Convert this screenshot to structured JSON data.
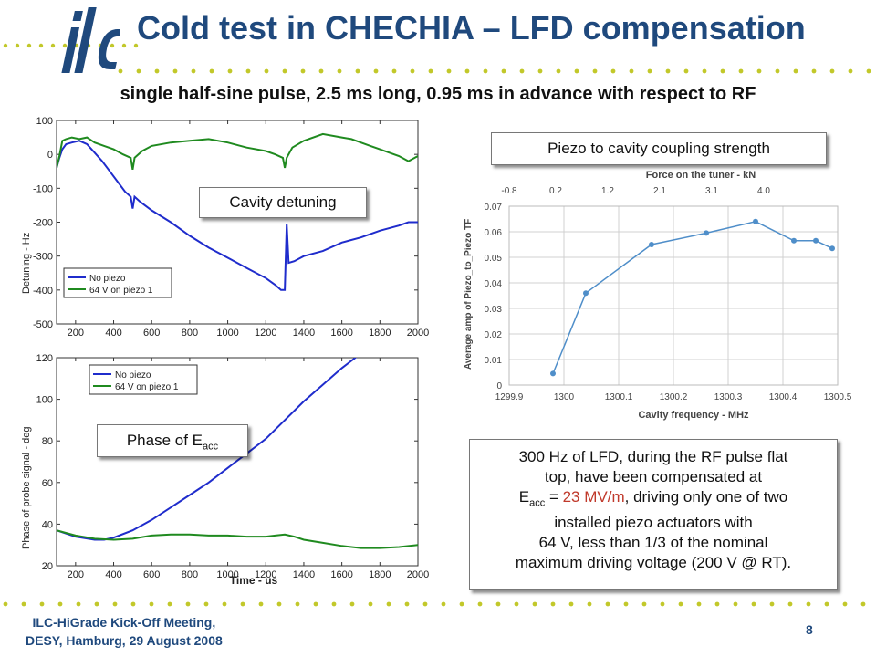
{
  "header": {
    "logo_text": "ilc",
    "title": "Cold test in CHECHIA – LFD compensation",
    "subtitle": "single half-sine pulse, 2.5 ms long, 0.95 ms in advance with respect to RF"
  },
  "labels": {
    "detuning_box": "Cavity detuning",
    "phase_box_main": "Phase of E",
    "phase_box_sub": "acc",
    "coupling_box": "Piezo to cavity coupling strength"
  },
  "note": {
    "line1": "300 Hz of LFD, during the RF pulse flat",
    "line2": "top, have been compensated at",
    "line3_e": "E",
    "line3_sub": "acc",
    "line3_eq": " = ",
    "line3_val": "23 MV/m",
    "line3_rest": ", driving only one of two",
    "line4": "installed piezo actuators with",
    "line5": "64 V, less than 1/3 of the nominal",
    "line6": "maximum driving voltage (200 V @ RT)."
  },
  "footer": {
    "line1": "ILC-HiGrade Kick-Off Meeting,",
    "line2": "DESY, Hamburg, 29 August 2008",
    "page_number": "8"
  },
  "colors": {
    "title_blue": "#1f497d",
    "dots_olive": "#c2c82a",
    "no_piezo": "#1f2ccc",
    "piezo_64v": "#1f8a1f",
    "coupling_line": "#4f8ec9",
    "highlight_red": "#c0392b"
  },
  "chart_data": [
    {
      "id": "detuning",
      "type": "line",
      "xlim": [
        100,
        2000
      ],
      "ylim": [
        -500,
        100
      ],
      "xticks": [
        200,
        400,
        600,
        800,
        1000,
        1200,
        1400,
        1600,
        1800,
        2000
      ],
      "yticks": [
        -500,
        -400,
        -300,
        -200,
        -100,
        0,
        100
      ],
      "xlabel": "",
      "ylabel": "Detuning - Hz",
      "legend": "bottom-left",
      "grid": false,
      "series": [
        {
          "name": "No piezo",
          "x": [
            100,
            115,
            130,
            150,
            180,
            220,
            260,
            300,
            340,
            380,
            420,
            460,
            490,
            500,
            510,
            540,
            600,
            700,
            800,
            900,
            1000,
            1100,
            1200,
            1250,
            1280,
            1300,
            1310,
            1320,
            1350,
            1400,
            1500,
            1600,
            1700,
            1800,
            1900,
            1950,
            2000
          ],
          "y": [
            -40,
            -10,
            15,
            30,
            35,
            40,
            30,
            5,
            -20,
            -50,
            -80,
            -110,
            -125,
            -160,
            -125,
            -140,
            -165,
            -200,
            -240,
            -275,
            -305,
            -335,
            -365,
            -385,
            -400,
            -400,
            -205,
            -320,
            -315,
            -300,
            -285,
            -260,
            -245,
            -225,
            -210,
            -200,
            -200
          ]
        },
        {
          "name": "64 V on piezo 1",
          "x": [
            100,
            115,
            130,
            150,
            180,
            220,
            260,
            300,
            350,
            400,
            450,
            490,
            500,
            510,
            550,
            600,
            700,
            800,
            900,
            1000,
            1100,
            1200,
            1250,
            1290,
            1300,
            1310,
            1340,
            1400,
            1500,
            1600,
            1650,
            1700,
            1750,
            1800,
            1850,
            1900,
            1950,
            2000
          ],
          "y": [
            -40,
            -5,
            40,
            45,
            50,
            45,
            50,
            35,
            25,
            15,
            0,
            -10,
            -45,
            -10,
            10,
            25,
            35,
            40,
            45,
            35,
            20,
            10,
            0,
            -10,
            -40,
            -10,
            20,
            40,
            60,
            50,
            45,
            35,
            25,
            15,
            5,
            -5,
            -20,
            -5
          ]
        }
      ]
    },
    {
      "id": "phase",
      "type": "line",
      "xlim": [
        100,
        2000
      ],
      "ylim": [
        20,
        120
      ],
      "xticks": [
        200,
        400,
        600,
        800,
        1000,
        1200,
        1400,
        1600,
        1800,
        2000
      ],
      "yticks": [
        20,
        40,
        60,
        80,
        100,
        120
      ],
      "xlabel": "Time - us",
      "ylabel": "Phase of probe signal - deg",
      "legend": "top-left",
      "grid": false,
      "series": [
        {
          "name": "No piezo",
          "x": [
            100,
            200,
            300,
            350,
            400,
            500,
            600,
            700,
            800,
            900,
            1000,
            1100,
            1200,
            1300,
            1400,
            1500,
            1600,
            1700,
            1750
          ],
          "y": [
            37,
            34,
            32.5,
            32.5,
            33.5,
            37,
            42,
            48,
            54,
            60,
            67,
            74,
            81,
            90,
            99,
            107,
            115,
            122,
            126
          ]
        },
        {
          "name": "64 V on piezo 1",
          "x": [
            100,
            200,
            300,
            400,
            500,
            600,
            700,
            800,
            900,
            1000,
            1100,
            1200,
            1250,
            1300,
            1350,
            1400,
            1500,
            1600,
            1700,
            1800,
            1900,
            2000
          ],
          "y": [
            37,
            34.5,
            33,
            32.5,
            33,
            34.5,
            35,
            35,
            34.5,
            34.5,
            34,
            34,
            34.5,
            35,
            34,
            32.5,
            31,
            29.5,
            28.5,
            28.5,
            29,
            30
          ]
        }
      ]
    },
    {
      "id": "coupling",
      "type": "line",
      "xlabel": "Cavity frequency - MHz",
      "ylabel": "Average amp of Piezo_to_Piezo TF",
      "top_axis_label": "Force on the tuner - kN",
      "xlim": [
        1299.9,
        1300.5
      ],
      "ylim": [
        0,
        0.07
      ],
      "xticks": [
        "1299.9",
        "1300",
        "1300.1",
        "1300.2",
        "1300.3",
        "1300.4",
        "1300.5"
      ],
      "yticks": [
        "0",
        "0.01",
        "0.02",
        "0.03",
        "0.04",
        "0.05",
        "0.06",
        "0.07"
      ],
      "top_ticks": [
        {
          "label": "-0.8",
          "at": 1299.9
        },
        {
          "label": "0.2",
          "at": 1299.985
        },
        {
          "label": "1.2",
          "at": 1300.08
        },
        {
          "label": "2.1",
          "at": 1300.175
        },
        {
          "label": "3.1",
          "at": 1300.27
        },
        {
          "label": "4.0",
          "at": 1300.365
        }
      ],
      "grid": true,
      "series": [
        {
          "name": "",
          "x": [
            1299.98,
            1300.04,
            1300.16,
            1300.26,
            1300.35,
            1300.42,
            1300.46,
            1300.49
          ],
          "y": [
            0.0045,
            0.036,
            0.055,
            0.0595,
            0.064,
            0.0565,
            0.0565,
            0.0535
          ]
        }
      ]
    }
  ]
}
